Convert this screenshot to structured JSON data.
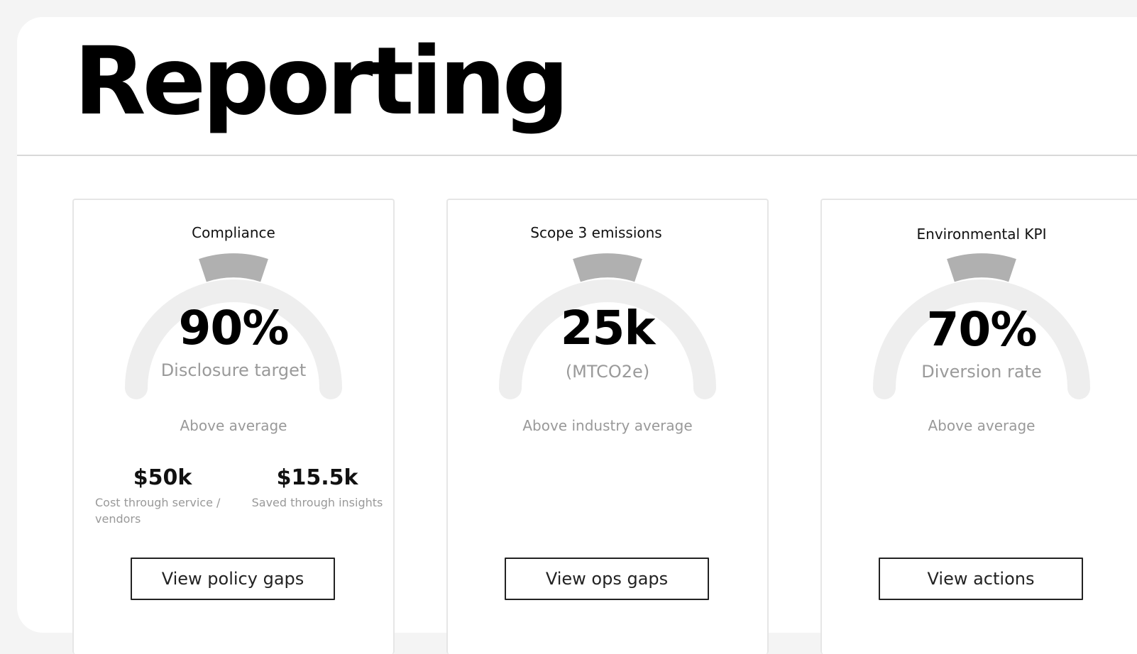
{
  "page": {
    "title": "Reporting"
  },
  "colors": {
    "gauge_track": "#eeeeee",
    "gauge_marker": "#b0b0b0",
    "button_border": "#222222"
  },
  "cards": [
    {
      "title": "Compliance",
      "value": "90%",
      "value_caption": "Disclosure target",
      "comparison": "Above average",
      "stats": [
        {
          "value": "$50k",
          "label": "Cost through service / vendors"
        },
        {
          "value": "$15.5k",
          "label": "Saved through insights"
        }
      ],
      "button_label": "View policy gaps"
    },
    {
      "title": "Scope 3 emissions",
      "value": "25k",
      "value_caption": "(MTCO2e)",
      "comparison": "Above industry average",
      "button_label": "View ops gaps"
    },
    {
      "title": "Environmental KPI",
      "value": "70%",
      "value_caption": "Diversion rate",
      "comparison": "Above average",
      "button_label": "View actions"
    }
  ]
}
